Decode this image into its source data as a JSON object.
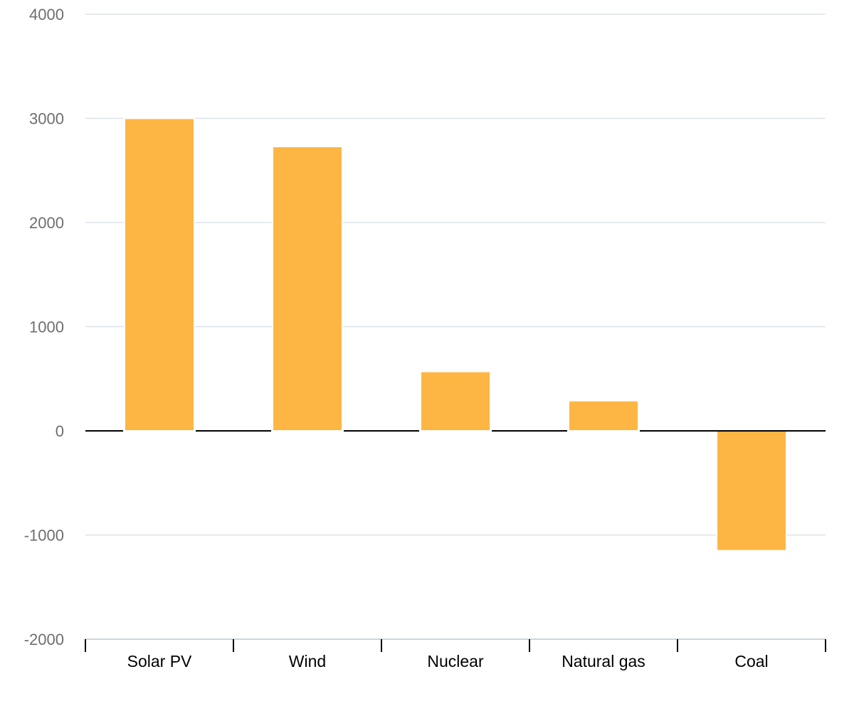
{
  "chart_data": {
    "type": "bar",
    "categories": [
      "Solar PV",
      "Wind",
      "Nuclear",
      "Natural gas",
      "Coal"
    ],
    "values": [
      3000,
      2730,
      570,
      290,
      -1150
    ],
    "title": "",
    "xlabel": "",
    "ylabel": "",
    "ylim": [
      -2000,
      4000
    ],
    "yticks": [
      "4000",
      "3000",
      "2000",
      "1000",
      "0",
      "-1000",
      "-2000"
    ],
    "grid": true,
    "legend": "none",
    "colors": {
      "bar": "#fdb643",
      "grid": "#dde3e8",
      "zero_line": "#000000",
      "y_tick_text": "#6e6e6e",
      "x_tick_text": "#000000"
    }
  }
}
